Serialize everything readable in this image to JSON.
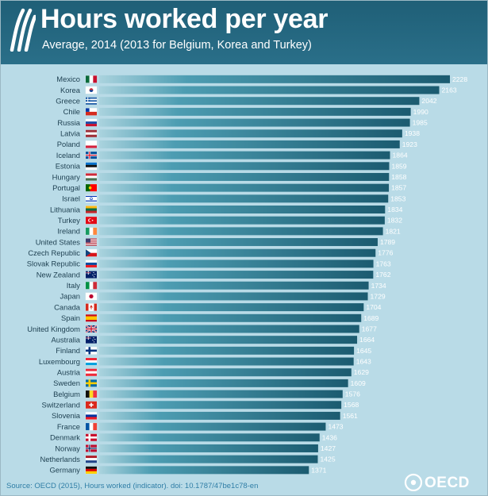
{
  "header": {
    "title": "Hours worked per year",
    "subtitle": "Average, 2014 (2013 for Belgium, Korea and Turkey)"
  },
  "footer": {
    "source": "Source: OECD (2015), Hours worked (indicator). doi: 10.1787/47be1c78-en",
    "logo_text": "OECD"
  },
  "colors": {
    "header": "#1f5f77",
    "background": "#b9dbe7",
    "bar_dark": "#1a5a6e",
    "bar_light": "#4a9fb3"
  },
  "chart_data": {
    "type": "bar",
    "orientation": "horizontal",
    "title": "Hours worked per year",
    "subtitle": "Average, 2014 (2013 for Belgium, Korea and Turkey)",
    "xlim": [
      0,
      2228
    ],
    "grid": false,
    "categories": [
      "Mexico",
      "Korea",
      "Greece",
      "Chile",
      "Russia",
      "Latvia",
      "Poland",
      "Iceland",
      "Estonia",
      "Hungary",
      "Portugal",
      "Israel",
      "Lithuania",
      "Turkey",
      "Ireland",
      "United States",
      "Czech Republic",
      "Slovak Republic",
      "New Zealand",
      "Italy",
      "Japan",
      "Canada",
      "Spain",
      "United Kingdom",
      "Australia",
      "Finland",
      "Luxembourg",
      "Austria",
      "Sweden",
      "Belgium",
      "Switzerland",
      "Slovenia",
      "France",
      "Denmark",
      "Norway",
      "Netherlands",
      "Germany"
    ],
    "values": [
      2228,
      2163,
      2042,
      1990,
      1985,
      1938,
      1923,
      1864,
      1859,
      1858,
      1857,
      1853,
      1834,
      1832,
      1821,
      1789,
      1776,
      1763,
      1762,
      1734,
      1729,
      1704,
      1689,
      1677,
      1664,
      1645,
      1643,
      1629,
      1609,
      1576,
      1568,
      1561,
      1473,
      1436,
      1427,
      1425,
      1371
    ],
    "value_labels": [
      "2228",
      "2163",
      "2042",
      "1990",
      "1985",
      "1938",
      "1923",
      "1864",
      "1859",
      "1858",
      "1857",
      "1853",
      "1834",
      "1832",
      "1821",
      "1789",
      "1776",
      "1763",
      "1762",
      "1734",
      "1729",
      "1704",
      "1689",
      "1677",
      "1664",
      "1645",
      "1643",
      "1629",
      "1609",
      "1576",
      "1568",
      "1561",
      "1473",
      "1436",
      "1427",
      "1425",
      "1371"
    ],
    "flag_icons": [
      "flag-mexico-icon",
      "flag-korea-icon",
      "flag-greece-icon",
      "flag-chile-icon",
      "flag-russia-icon",
      "flag-latvia-icon",
      "flag-poland-icon",
      "flag-iceland-icon",
      "flag-estonia-icon",
      "flag-hungary-icon",
      "flag-portugal-icon",
      "flag-israel-icon",
      "flag-lithuania-icon",
      "flag-turkey-icon",
      "flag-ireland-icon",
      "flag-united-states-icon",
      "flag-czech-republic-icon",
      "flag-slovak-republic-icon",
      "flag-new-zealand-icon",
      "flag-italy-icon",
      "flag-japan-icon",
      "flag-canada-icon",
      "flag-spain-icon",
      "flag-united-kingdom-icon",
      "flag-australia-icon",
      "flag-finland-icon",
      "flag-luxembourg-icon",
      "flag-austria-icon",
      "flag-sweden-icon",
      "flag-belgium-icon",
      "flag-switzerland-icon",
      "flag-slovenia-icon",
      "flag-france-icon",
      "flag-denmark-icon",
      "flag-norway-icon",
      "flag-netherlands-icon",
      "flag-germany-icon"
    ]
  }
}
